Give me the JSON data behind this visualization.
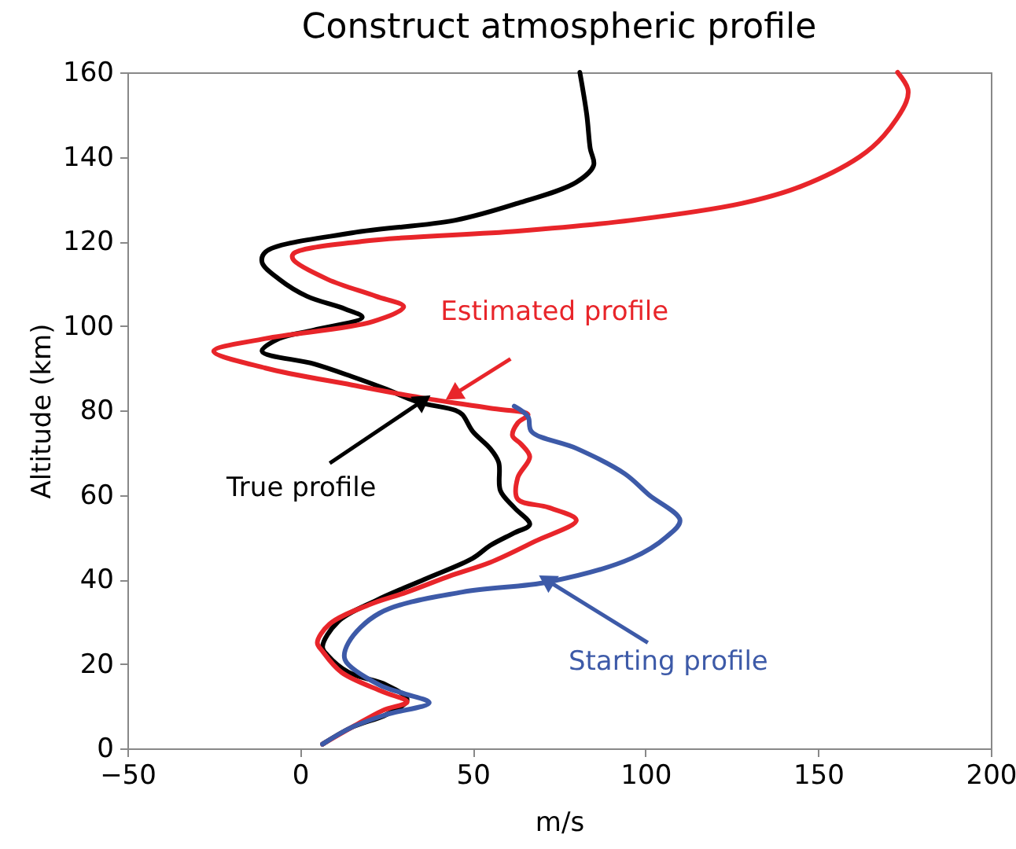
{
  "chart_data": {
    "type": "line",
    "title": "Construct atmospheric profile",
    "xlabel": "m/s",
    "ylabel": "Altitude (km)",
    "xlim": [
      -50,
      200
    ],
    "xticks": [
      -50,
      0,
      50,
      100,
      150,
      200
    ],
    "ylim": [
      0,
      160
    ],
    "yticks": [
      0,
      20,
      40,
      60,
      80,
      100,
      120,
      140,
      160
    ],
    "grid": false,
    "series": [
      {
        "color": "#000000",
        "x": [
          6.5,
          15,
          25,
          31,
          25,
          14,
          8,
          6.5,
          11,
          22,
          36,
          50,
          55,
          62,
          66.5,
          62,
          58,
          57.5,
          55,
          50,
          47,
          45,
          34,
          25,
          15,
          4,
          -11,
          -6,
          4,
          18,
          13,
          2,
          -6,
          -11,
          -10,
          15,
          45,
          63,
          80,
          85,
          84,
          83,
          81
        ],
        "values": [
          1,
          5,
          8,
          11.5,
          15,
          18,
          22,
          24,
          30,
          35,
          40,
          45,
          48,
          51,
          53,
          57,
          61,
          67.7,
          71,
          75,
          79,
          80,
          82,
          85,
          88,
          91,
          94,
          97,
          99,
          102,
          104,
          107,
          111,
          115,
          117.5,
          122,
          125,
          129,
          134,
          138,
          142,
          150,
          160
        ]
      },
      {
        "color": "#e8252a",
        "x": [
          6.5,
          15,
          24,
          31,
          24,
          12,
          6.5,
          5,
          8.5,
          20,
          31,
          44,
          55,
          68,
          80,
          72,
          63,
          63,
          66.5,
          64,
          61.5,
          63,
          66,
          55,
          35,
          15,
          -10,
          -25,
          -10,
          21,
          30,
          22,
          8,
          -2,
          -2,
          18,
          63,
          96,
          128,
          145,
          162,
          169,
          175.5,
          176,
          173
        ],
        "values": [
          1,
          5,
          9,
          11,
          13.4,
          18,
          23,
          25,
          29.4,
          34,
          37,
          41,
          44,
          49,
          54,
          57,
          59,
          64,
          69,
          72,
          74,
          77,
          79,
          80.5,
          83,
          86,
          90,
          94,
          97,
          101,
          104.5,
          107,
          111,
          115.7,
          117,
          120,
          122.4,
          125,
          129,
          133,
          140,
          145,
          153,
          156,
          160
        ]
      },
      {
        "color": "#3d5aa8",
        "x": [
          6.5,
          15,
          25,
          37.4,
          30,
          23,
          13,
          14,
          23,
          47,
          72,
          96,
          106,
          110,
          101,
          94,
          80,
          67,
          66,
          62
        ],
        "values": [
          1,
          5,
          8,
          10.8,
          13,
          15,
          21,
          25,
          32,
          37,
          39.4,
          45,
          50,
          54,
          60,
          65,
          71,
          75,
          78.5,
          81
        ]
      }
    ],
    "annotations": [
      {
        "text": "True profile",
        "x": 35,
        "y": 82
      },
      {
        "text": "Estimated profile",
        "x": 45,
        "y": 84
      },
      {
        "text": "Starting profile",
        "x": 72,
        "y": 39.5
      }
    ]
  }
}
